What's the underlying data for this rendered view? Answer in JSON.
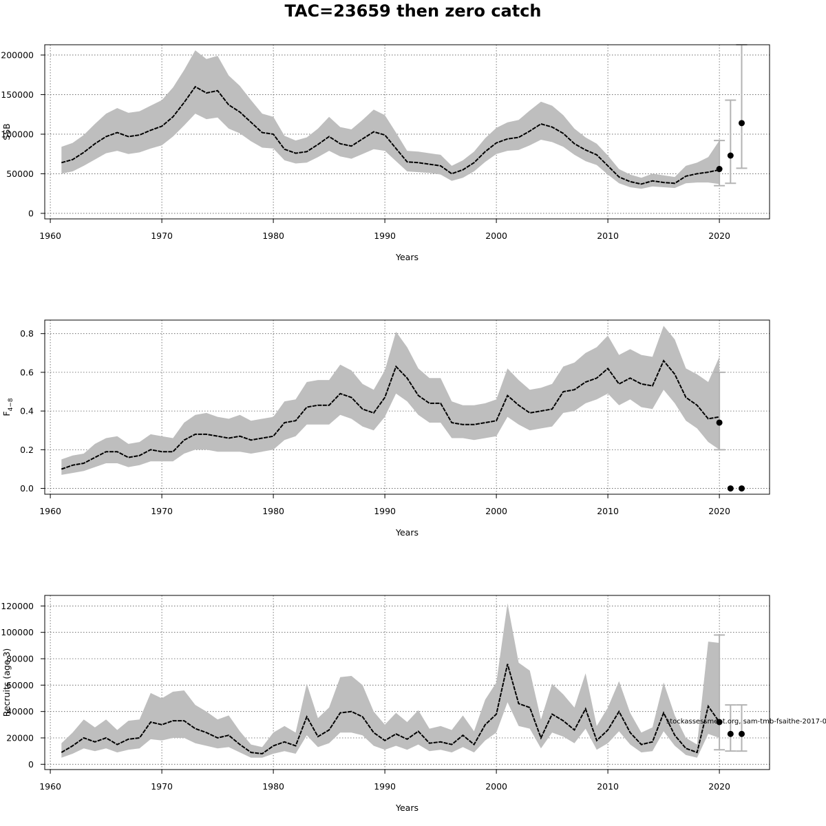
{
  "title": "TAC=23659 then zero catch",
  "watermark": "stockassessment.org, sam-tmb-fsaithe-2017-0",
  "colors": {
    "band": "#bebebe",
    "line": "#000000",
    "grid": "#555555",
    "errorbar": "#b3b3b3"
  },
  "chart_data": [
    {
      "type": "line",
      "ylabel": "SSB",
      "xlabel": "Years",
      "xlim": [
        1959.5,
        2024.5
      ],
      "ylim": [
        -7000,
        213000
      ],
      "xticks": [
        1960,
        1970,
        1980,
        1990,
        2000,
        2010,
        2020
      ],
      "yticks": [
        0,
        50000,
        100000,
        150000,
        200000
      ],
      "ytick_labels": [
        "0",
        "50000",
        "100000",
        "150000",
        "200000"
      ],
      "grid": true,
      "series": [
        {
          "kind": "estimate",
          "years": [
            1961,
            1962,
            1963,
            1964,
            1965,
            1966,
            1967,
            1968,
            1969,
            1970,
            1971,
            1972,
            1973,
            1974,
            1975,
            1976,
            1977,
            1978,
            1979,
            1980,
            1981,
            1982,
            1983,
            1984,
            1985,
            1986,
            1987,
            1988,
            1989,
            1990,
            1991,
            1992,
            1993,
            1994,
            1995,
            1996,
            1997,
            1998,
            1999,
            2000,
            2001,
            2002,
            2003,
            2004,
            2005,
            2006,
            2007,
            2008,
            2009,
            2010,
            2011,
            2012,
            2013,
            2014,
            2015,
            2016,
            2017,
            2018,
            2019,
            2020
          ],
          "values": [
            64000,
            68000,
            77000,
            88000,
            97000,
            102000,
            97000,
            99000,
            105000,
            110000,
            122000,
            140000,
            160000,
            152000,
            155000,
            137000,
            128000,
            115000,
            102000,
            100000,
            81000,
            76000,
            78000,
            87000,
            97000,
            88000,
            85000,
            94000,
            103000,
            99000,
            82000,
            65000,
            64000,
            62000,
            60000,
            50000,
            55000,
            64000,
            78000,
            89000,
            94000,
            96000,
            104000,
            113000,
            109000,
            101000,
            88000,
            80000,
            74000,
            60000,
            46000,
            40000,
            37000,
            41000,
            39000,
            38000,
            47000,
            50000,
            52000,
            55000
          ],
          "lower": [
            50000,
            53000,
            60000,
            68000,
            76000,
            79000,
            75000,
            77000,
            82000,
            86000,
            97000,
            111000,
            126000,
            119000,
            121000,
            107000,
            101000,
            91000,
            83000,
            82000,
            67000,
            63000,
            64000,
            71000,
            79000,
            72000,
            69000,
            75000,
            81000,
            79000,
            66000,
            53000,
            52000,
            51000,
            49000,
            41000,
            45000,
            53000,
            65000,
            75000,
            79000,
            80000,
            86000,
            93000,
            90000,
            84000,
            74000,
            66000,
            61000,
            49000,
            38000,
            33000,
            31000,
            34000,
            33000,
            32000,
            38000,
            39000,
            39000,
            37000
          ],
          "upper": [
            84000,
            89000,
            99000,
            113000,
            126000,
            133000,
            127000,
            129000,
            136000,
            143000,
            159000,
            181000,
            206000,
            195000,
            199000,
            174000,
            161000,
            143000,
            126000,
            122000,
            98000,
            92000,
            96000,
            107000,
            122000,
            109000,
            106000,
            118000,
            131000,
            124000,
            102000,
            79000,
            78000,
            76000,
            74000,
            60000,
            67000,
            78000,
            95000,
            108000,
            115000,
            118000,
            130000,
            141000,
            136000,
            124000,
            107000,
            96000,
            88000,
            73000,
            56000,
            49000,
            45000,
            50000,
            48000,
            46000,
            60000,
            64000,
            71000,
            92000
          ]
        },
        {
          "kind": "forecast",
          "years": [
            2020,
            2021,
            2022
          ],
          "values": [
            56000,
            73000,
            114000
          ],
          "lower": [
            35000,
            38000,
            57000
          ],
          "upper": [
            92000,
            143000,
            213000
          ]
        }
      ]
    },
    {
      "type": "line",
      "ylabel": "F",
      "ylabel_sub": "4−8",
      "xlabel": "Years",
      "xlim": [
        1959.5,
        2024.5
      ],
      "ylim": [
        -0.03,
        0.87
      ],
      "xticks": [
        1960,
        1970,
        1980,
        1990,
        2000,
        2010,
        2020
      ],
      "yticks": [
        0,
        0.2,
        0.4,
        0.6,
        0.8
      ],
      "ytick_labels": [
        "0.0",
        "0.2",
        "0.4",
        "0.6",
        "0.8"
      ],
      "grid": true,
      "series": [
        {
          "kind": "estimate",
          "years": [
            1961,
            1962,
            1963,
            1964,
            1965,
            1966,
            1967,
            1968,
            1969,
            1970,
            1971,
            1972,
            1973,
            1974,
            1975,
            1976,
            1977,
            1978,
            1979,
            1980,
            1981,
            1982,
            1983,
            1984,
            1985,
            1986,
            1987,
            1988,
            1989,
            1990,
            1991,
            1992,
            1993,
            1994,
            1995,
            1996,
            1997,
            1998,
            1999,
            2000,
            2001,
            2002,
            2003,
            2004,
            2005,
            2006,
            2007,
            2008,
            2009,
            2010,
            2011,
            2012,
            2013,
            2014,
            2015,
            2016,
            2017,
            2018,
            2019,
            2020
          ],
          "values": [
            0.1,
            0.12,
            0.13,
            0.16,
            0.19,
            0.19,
            0.16,
            0.17,
            0.2,
            0.19,
            0.19,
            0.25,
            0.28,
            0.28,
            0.27,
            0.26,
            0.27,
            0.25,
            0.26,
            0.27,
            0.34,
            0.35,
            0.42,
            0.43,
            0.43,
            0.49,
            0.47,
            0.41,
            0.39,
            0.47,
            0.63,
            0.57,
            0.48,
            0.44,
            0.44,
            0.34,
            0.33,
            0.33,
            0.34,
            0.35,
            0.48,
            0.43,
            0.39,
            0.4,
            0.41,
            0.5,
            0.51,
            0.55,
            0.57,
            0.62,
            0.54,
            0.57,
            0.54,
            0.53,
            0.66,
            0.59,
            0.47,
            0.43,
            0.36,
            0.37
          ],
          "lower": [
            0.07,
            0.08,
            0.09,
            0.11,
            0.13,
            0.13,
            0.11,
            0.12,
            0.14,
            0.14,
            0.14,
            0.18,
            0.2,
            0.2,
            0.19,
            0.19,
            0.19,
            0.18,
            0.19,
            0.2,
            0.25,
            0.27,
            0.33,
            0.33,
            0.33,
            0.38,
            0.36,
            0.32,
            0.3,
            0.37,
            0.49,
            0.45,
            0.38,
            0.34,
            0.34,
            0.26,
            0.26,
            0.25,
            0.26,
            0.27,
            0.37,
            0.33,
            0.3,
            0.31,
            0.32,
            0.39,
            0.4,
            0.44,
            0.46,
            0.49,
            0.43,
            0.46,
            0.42,
            0.41,
            0.51,
            0.44,
            0.35,
            0.31,
            0.24,
            0.2
          ],
          "upper": [
            0.15,
            0.17,
            0.18,
            0.23,
            0.26,
            0.27,
            0.23,
            0.24,
            0.28,
            0.27,
            0.26,
            0.34,
            0.38,
            0.39,
            0.37,
            0.36,
            0.38,
            0.35,
            0.36,
            0.37,
            0.45,
            0.46,
            0.55,
            0.56,
            0.56,
            0.64,
            0.61,
            0.54,
            0.51,
            0.61,
            0.81,
            0.73,
            0.62,
            0.57,
            0.57,
            0.45,
            0.43,
            0.43,
            0.44,
            0.46,
            0.62,
            0.56,
            0.51,
            0.52,
            0.54,
            0.63,
            0.65,
            0.7,
            0.73,
            0.79,
            0.69,
            0.72,
            0.69,
            0.68,
            0.84,
            0.77,
            0.62,
            0.59,
            0.55,
            0.68
          ]
        },
        {
          "kind": "forecast",
          "years": [
            2020,
            2021,
            2022
          ],
          "values": [
            0.34,
            0.0,
            0.0
          ],
          "lower": [
            0.2,
            null,
            null
          ],
          "upper": [
            0.6,
            null,
            null
          ]
        }
      ]
    },
    {
      "type": "line",
      "ylabel": "Recruits (age 3)",
      "xlabel": "Years",
      "xlim": [
        1959.5,
        2024.5
      ],
      "ylim": [
        -4000,
        128000
      ],
      "xticks": [
        1960,
        1970,
        1980,
        1990,
        2000,
        2010,
        2020
      ],
      "yticks": [
        0,
        20000,
        40000,
        60000,
        80000,
        100000,
        120000
      ],
      "ytick_labels": [
        "0",
        "20000",
        "40000",
        "60000",
        "80000",
        "100000",
        "120000"
      ],
      "grid": true,
      "series": [
        {
          "kind": "estimate",
          "years": [
            1961,
            1962,
            1963,
            1964,
            1965,
            1966,
            1967,
            1968,
            1969,
            1970,
            1971,
            1972,
            1973,
            1974,
            1975,
            1976,
            1977,
            1978,
            1979,
            1980,
            1981,
            1982,
            1983,
            1984,
            1985,
            1986,
            1987,
            1988,
            1989,
            1990,
            1991,
            1992,
            1993,
            1994,
            1995,
            1996,
            1997,
            1998,
            1999,
            2000,
            2001,
            2002,
            2003,
            2004,
            2005,
            2006,
            2007,
            2008,
            2009,
            2010,
            2011,
            2012,
            2013,
            2014,
            2015,
            2016,
            2017,
            2018,
            2019,
            2020
          ],
          "values": [
            9000,
            14000,
            20000,
            17000,
            20000,
            15000,
            19000,
            20000,
            32000,
            30000,
            33000,
            33000,
            27000,
            24000,
            20000,
            22000,
            15000,
            9000,
            8000,
            14000,
            17000,
            14000,
            36000,
            21000,
            26000,
            39000,
            40000,
            36000,
            24000,
            18000,
            23000,
            19000,
            25000,
            16000,
            17000,
            15000,
            22000,
            15000,
            30000,
            38000,
            76000,
            46000,
            43000,
            20000,
            38000,
            33000,
            26000,
            42000,
            18000,
            26000,
            40000,
            24000,
            15000,
            17000,
            39000,
            22000,
            12000,
            9000,
            44000,
            32000
          ],
          "lower": [
            5000,
            8000,
            12000,
            10000,
            12000,
            9000,
            11000,
            12000,
            19000,
            18000,
            20000,
            20000,
            16000,
            14000,
            12000,
            13000,
            9000,
            5000,
            5000,
            8000,
            10000,
            8000,
            22000,
            13000,
            16000,
            24000,
            24000,
            22000,
            14000,
            11000,
            14000,
            11000,
            15000,
            10000,
            11000,
            9000,
            13000,
            9000,
            18000,
            24000,
            47000,
            29000,
            27000,
            12000,
            24000,
            21000,
            16000,
            27000,
            11000,
            16000,
            25000,
            15000,
            9000,
            10000,
            25000,
            14000,
            7000,
            5000,
            23000,
            20000
          ],
          "upper": [
            16000,
            24000,
            34000,
            28000,
            34000,
            26000,
            33000,
            34000,
            54000,
            50000,
            55000,
            56000,
            45000,
            40000,
            34000,
            37000,
            25000,
            15000,
            13000,
            24000,
            29000,
            24000,
            61000,
            35000,
            43000,
            66000,
            67000,
            60000,
            40000,
            30000,
            39000,
            32000,
            41000,
            27000,
            29000,
            26000,
            37000,
            25000,
            49000,
            62000,
            122000,
            77000,
            71000,
            34000,
            61000,
            53000,
            43000,
            69000,
            29000,
            43000,
            63000,
            39000,
            24000,
            28000,
            62000,
            37000,
            20000,
            15000,
            93000,
            92000
          ]
        },
        {
          "kind": "forecast",
          "years": [
            2020,
            2021,
            2022
          ],
          "values": [
            32000,
            23000,
            23000
          ],
          "lower": [
            11000,
            10000,
            10000
          ],
          "upper": [
            98000,
            45000,
            45000
          ]
        }
      ]
    }
  ]
}
